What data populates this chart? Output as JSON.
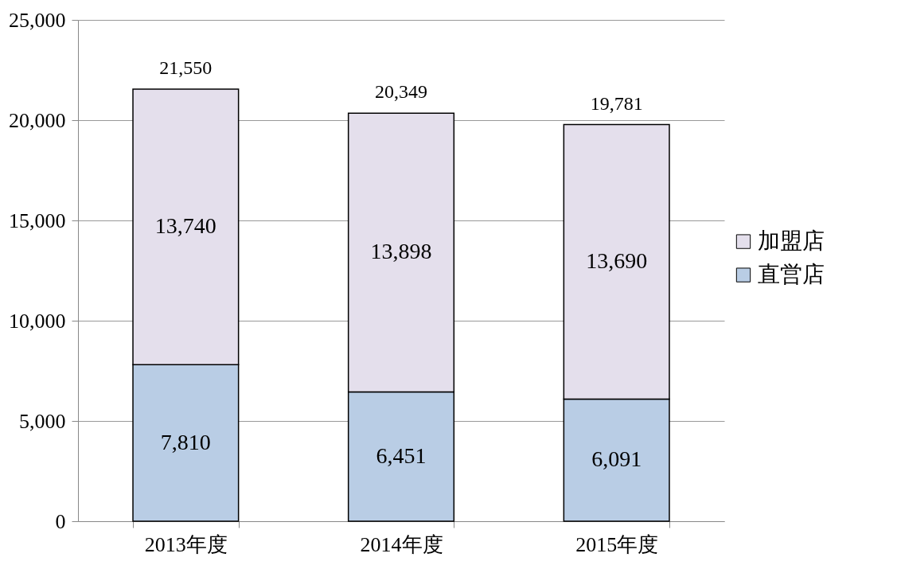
{
  "chart_data": {
    "type": "bar",
    "stacked": true,
    "categories": [
      "2013年度",
      "2014年度",
      "2015年度"
    ],
    "series": [
      {
        "name": "直営店",
        "color": "#b9cde5",
        "values": [
          7810,
          6451,
          6091
        ],
        "value_labels": [
          "7,810",
          "6,451",
          "6,091"
        ]
      },
      {
        "name": "加盟店",
        "color": "#e4dfec",
        "values": [
          13740,
          13898,
          13690
        ],
        "value_labels": [
          "13,740",
          "13,898",
          "13,690"
        ]
      }
    ],
    "totals": [
      "21,550",
      "20,349",
      "19,781"
    ],
    "ylim": [
      0,
      25000
    ],
    "yticks": [
      {
        "value": 0,
        "label": "0"
      },
      {
        "value": 5000,
        "label": "5,000"
      },
      {
        "value": 10000,
        "label": "10,000"
      },
      {
        "value": 15000,
        "label": "15,000"
      },
      {
        "value": 20000,
        "label": "20,000"
      },
      {
        "value": 25000,
        "label": "25,000"
      }
    ],
    "grid": "y",
    "legend": "right"
  }
}
